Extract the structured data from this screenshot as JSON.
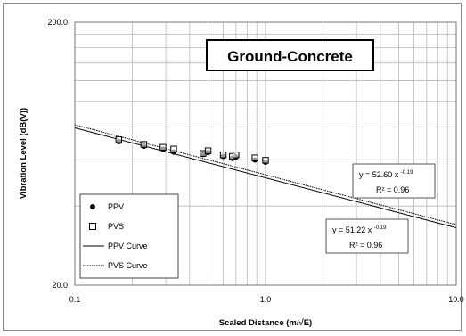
{
  "chart_data": {
    "type": "scatter",
    "title": "Ground-Concrete",
    "xlabel": "Scaled Distance  (m/√E)",
    "ylabel": "Vibration Level  (dB(V))",
    "x_scale": "log",
    "y_scale": "log",
    "xlim": [
      0.1,
      10.0
    ],
    "ylim": [
      20.0,
      200.0
    ],
    "x_tick_labels": [
      "0.1",
      "1.0",
      "10.0"
    ],
    "y_tick_labels": [
      "200.0",
      "20.0"
    ],
    "grid": true,
    "legend_position": "bottom-left",
    "series": [
      {
        "name": "PPV",
        "marker": "filled-circle",
        "points": [
          [
            0.17,
            70.3
          ],
          [
            0.23,
            67.5
          ],
          [
            0.29,
            65.8
          ],
          [
            0.33,
            64.2
          ],
          [
            0.47,
            62.8
          ],
          [
            0.5,
            63.9
          ],
          [
            0.6,
            61.8
          ],
          [
            0.67,
            60.7
          ],
          [
            0.7,
            61.5
          ],
          [
            0.88,
            59.9
          ],
          [
            1.0,
            58.7
          ]
        ]
      },
      {
        "name": "PVS",
        "marker": "open-square",
        "points": [
          [
            0.17,
            71.5
          ],
          [
            0.23,
            68.6
          ],
          [
            0.29,
            66.9
          ],
          [
            0.33,
            65.9
          ],
          [
            0.47,
            63.4
          ],
          [
            0.5,
            64.9
          ],
          [
            0.6,
            62.6
          ],
          [
            0.67,
            61.8
          ],
          [
            0.7,
            62.6
          ],
          [
            0.88,
            61.0
          ],
          [
            1.0,
            59.7
          ]
        ]
      },
      {
        "name": "PPV Curve",
        "style": "solid-line",
        "fit": {
          "a": 51.22,
          "b": -0.19
        }
      },
      {
        "name": "PVS Curve",
        "style": "dotted-line",
        "fit": {
          "a": 52.6,
          "b": -0.19
        }
      }
    ],
    "annotations": [
      {
        "id": "pvs-fit",
        "equation_base": "y = 52.60 x",
        "exponent": "-0.19",
        "r2": "R² = 0.96"
      },
      {
        "id": "ppv-fit",
        "equation_base": "y = 51.22 x",
        "exponent": "-0.19",
        "r2": "R² = 0.96"
      }
    ],
    "colors": {
      "line": "#000000",
      "grid": "#b8b8b8",
      "frame": "#8a8a8a",
      "title_border": "#000000"
    }
  }
}
